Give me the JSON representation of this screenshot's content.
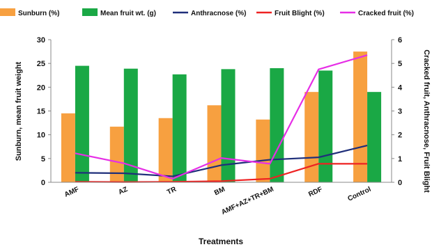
{
  "chart_data": {
    "type": "bar",
    "categories": [
      "AMF",
      "AZ",
      "TR",
      "BM",
      "AMF+AZ+TR+BM",
      "RDF",
      "Control"
    ],
    "xlabel": "Treatments",
    "ylabel_left": "Sunburn, mean fruit weight",
    "ylabel_right": "Cracked fruit, Anthracnose, Fruit Blight",
    "ylim_left": [
      0,
      30
    ],
    "ylim_right": [
      0,
      6
    ],
    "yticks_left": [
      "0",
      "5",
      "10",
      "15",
      "20",
      "25",
      "30"
    ],
    "yticks_right": [
      "0",
      "1",
      "2",
      "3",
      "4",
      "5",
      "6"
    ],
    "grid": false,
    "legend_position": "top",
    "bar_series": [
      {
        "name": "Sunburn (%)",
        "color": "#f7a040",
        "axis": "left",
        "values": [
          14.5,
          11.7,
          13.5,
          16.2,
          13.2,
          19.0,
          27.5
        ]
      },
      {
        "name": "Mean fruit wt. (g)",
        "color": "#1aa845",
        "axis": "left",
        "values": [
          24.5,
          23.9,
          22.7,
          23.8,
          24.0,
          23.5,
          19.0
        ]
      }
    ],
    "line_series": [
      {
        "name": "Anthracnose (%)",
        "color": "#1f2f7a",
        "axis": "right",
        "values": [
          0.4,
          0.38,
          0.25,
          0.72,
          0.95,
          1.05,
          1.55
        ]
      },
      {
        "name": "Fruit Blight (%)",
        "color": "#ee2222",
        "axis": "right",
        "values": [
          0.02,
          0.01,
          0.02,
          0.05,
          0.15,
          0.78,
          0.78
        ]
      },
      {
        "name": "Cracked fruit (%)",
        "color": "#e62ee6",
        "axis": "right",
        "values": [
          1.22,
          0.8,
          0.15,
          1.02,
          0.78,
          4.75,
          5.35
        ]
      }
    ]
  }
}
